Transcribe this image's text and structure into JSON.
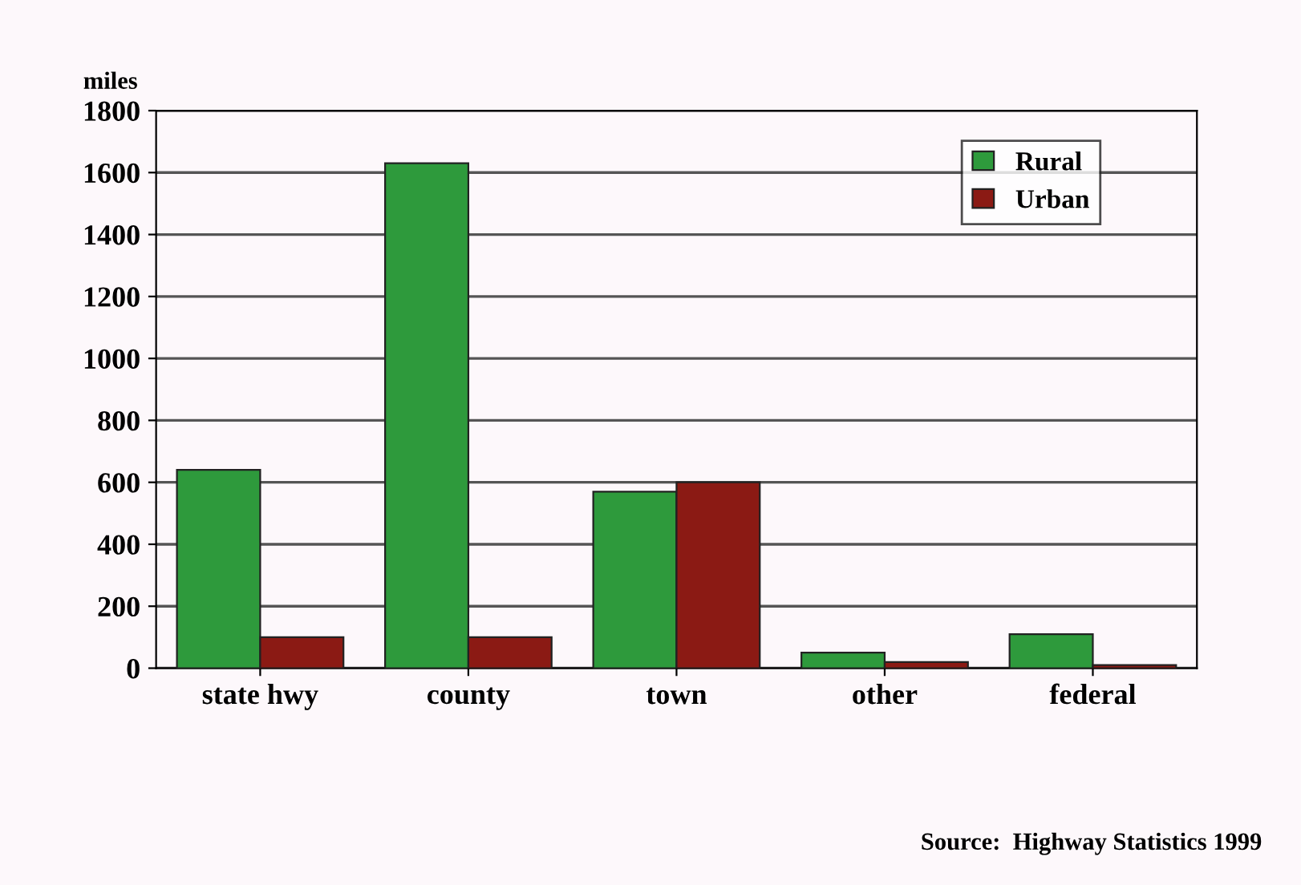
{
  "chart_data": {
    "type": "bar",
    "ylabel": "miles",
    "categories": [
      "state hwy",
      "county",
      "town",
      "other",
      "federal"
    ],
    "series": [
      {
        "name": "Rural",
        "color": "#2e9a3c",
        "values": [
          640,
          1630,
          570,
          50,
          110
        ]
      },
      {
        "name": "Urban",
        "color": "#8b1a14",
        "values": [
          100,
          100,
          600,
          20,
          10
        ]
      }
    ],
    "ylim": [
      0,
      1800
    ],
    "yticks": [
      0,
      200,
      400,
      600,
      800,
      1000,
      1200,
      1400,
      1600,
      1800
    ],
    "grid": "y",
    "legend": "top right",
    "annotations": [
      "Source:  Highway Statistics 1999"
    ]
  }
}
